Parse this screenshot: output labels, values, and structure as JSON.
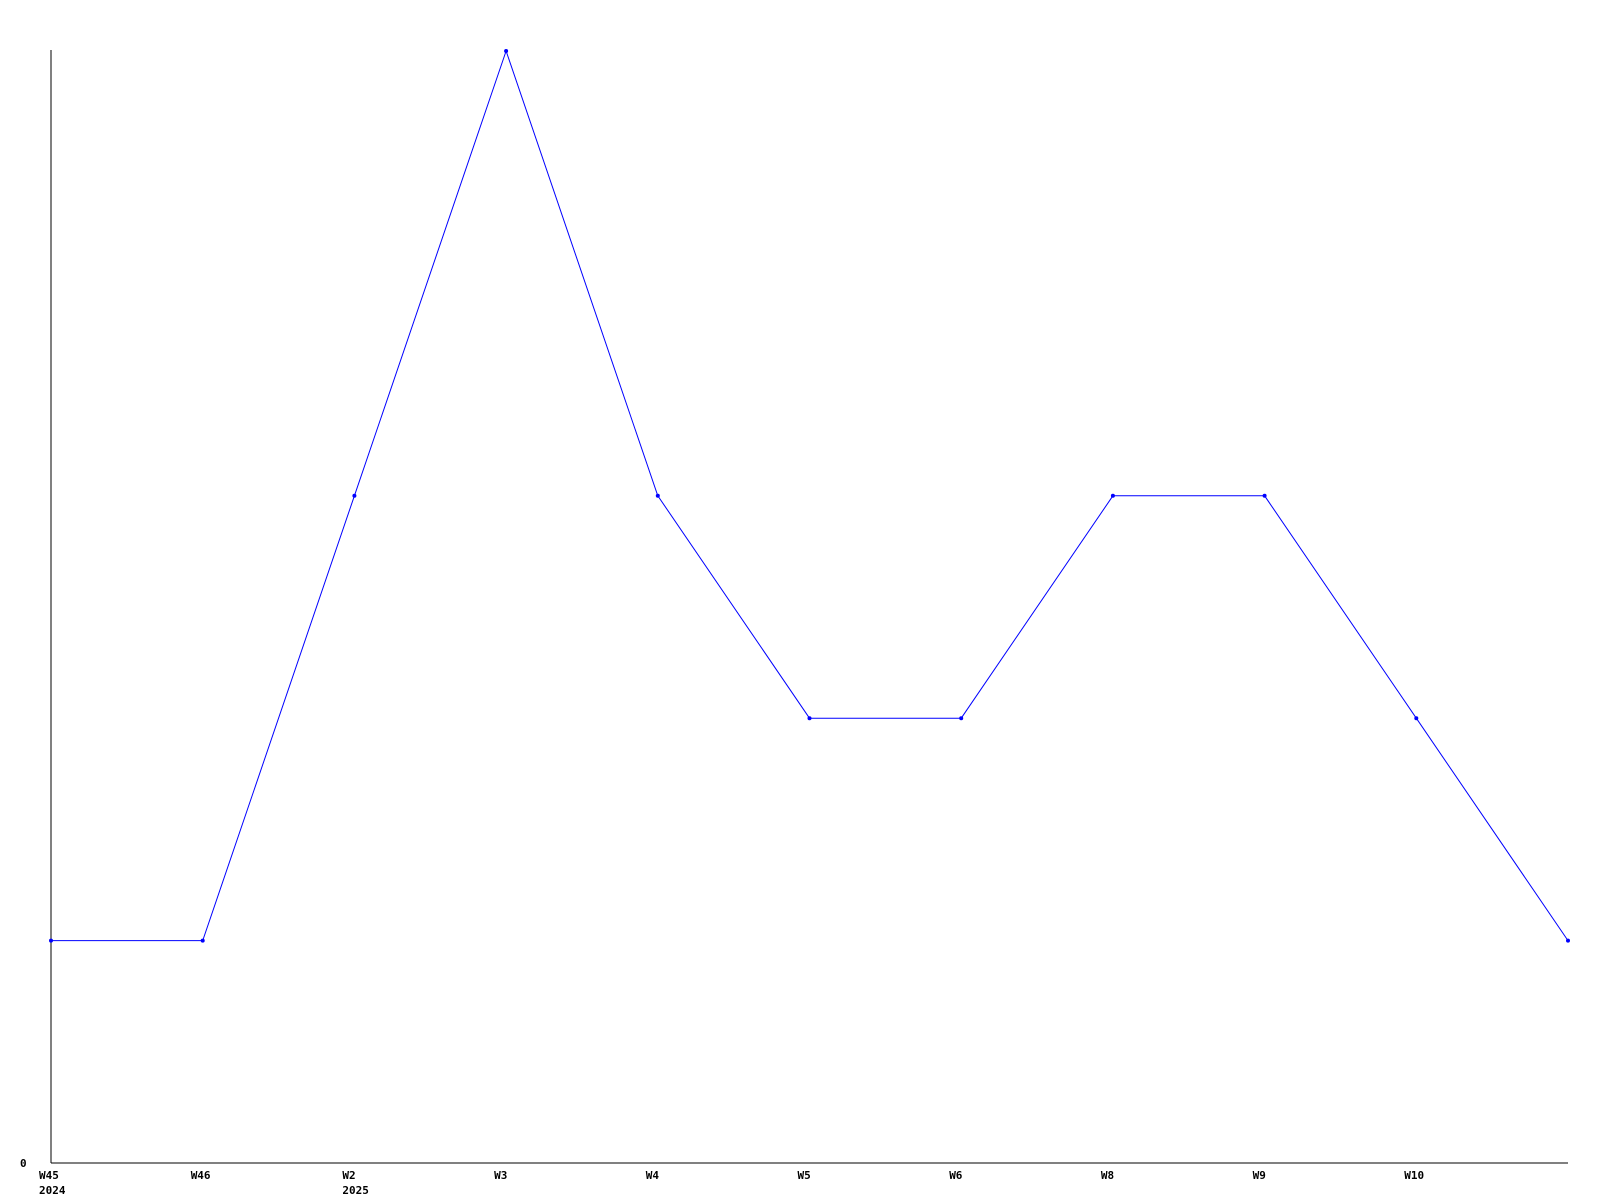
{
  "chart_data": {
    "type": "line",
    "title": "",
    "xlabel": "",
    "ylabel": "",
    "x_tick_labels": [
      {
        "label": "W45",
        "sub": "2024"
      },
      {
        "label": "W46",
        "sub": ""
      },
      {
        "label": "W2",
        "sub": "2025"
      },
      {
        "label": "W3",
        "sub": ""
      },
      {
        "label": "W4",
        "sub": ""
      },
      {
        "label": "W5",
        "sub": ""
      },
      {
        "label": "W6",
        "sub": ""
      },
      {
        "label": "W8",
        "sub": ""
      },
      {
        "label": "W9",
        "sub": ""
      },
      {
        "label": "W10",
        "sub": ""
      },
      {
        "label": "",
        "sub": ""
      }
    ],
    "y_tick_labels": [
      "0"
    ],
    "ylim": [
      0,
      5
    ],
    "grid": false,
    "series": [
      {
        "values": [
          1,
          1,
          3,
          5,
          3,
          2,
          2,
          3,
          3,
          2,
          1
        ],
        "color": "#0000ff"
      }
    ]
  }
}
